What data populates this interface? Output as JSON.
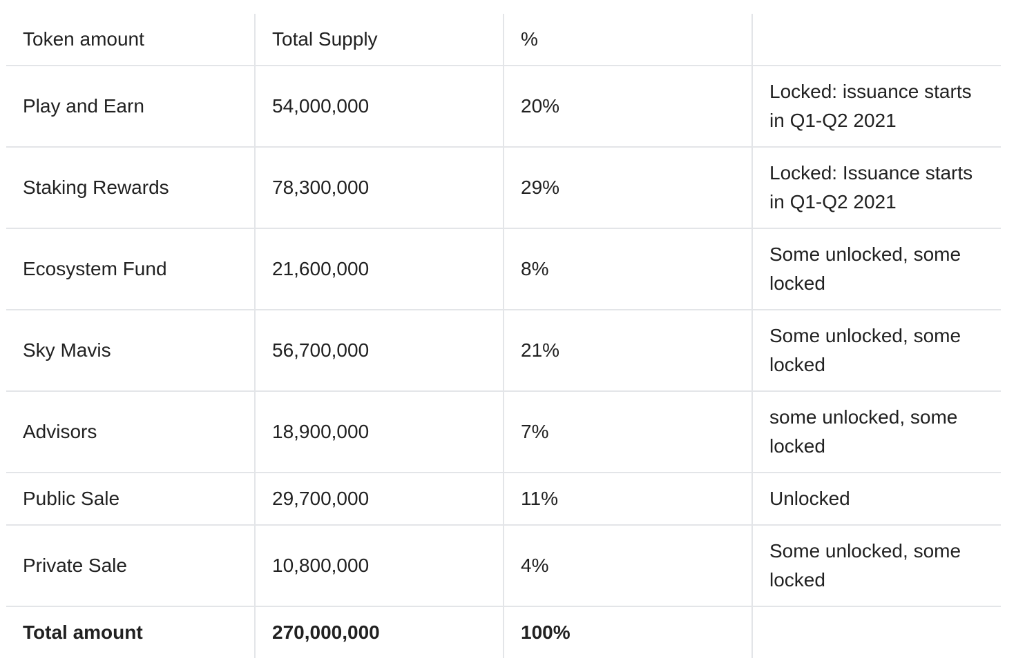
{
  "table": {
    "headers": [
      "Token amount",
      "Total Supply",
      "%",
      ""
    ],
    "rows": [
      {
        "name": "Play and Earn",
        "supply": "54,000,000",
        "percent": "20%",
        "status": "Locked: issuance starts in Q1-Q2 2021"
      },
      {
        "name": "Staking Rewards",
        "supply": "78,300,000",
        "percent": "29%",
        "status": "Locked: Issuance starts in Q1-Q2 2021"
      },
      {
        "name": "Ecosystem Fund",
        "supply": "21,600,000",
        "percent": "8%",
        "status": "Some unlocked, some locked"
      },
      {
        "name": "Sky Mavis",
        "supply": "56,700,000",
        "percent": "21%",
        "status": "Some unlocked, some locked"
      },
      {
        "name": "Advisors",
        "supply": "18,900,000",
        "percent": "7%",
        "status": "some unlocked, some locked"
      },
      {
        "name": "Public Sale",
        "supply": "29,700,000",
        "percent": "11%",
        "status": "Unlocked"
      },
      {
        "name": "Private Sale",
        "supply": "10,800,000",
        "percent": "4%",
        "status": "Some unlocked, some locked"
      }
    ],
    "total": {
      "name": "Total amount",
      "supply": "270,000,000",
      "percent": "100%",
      "status": ""
    }
  }
}
